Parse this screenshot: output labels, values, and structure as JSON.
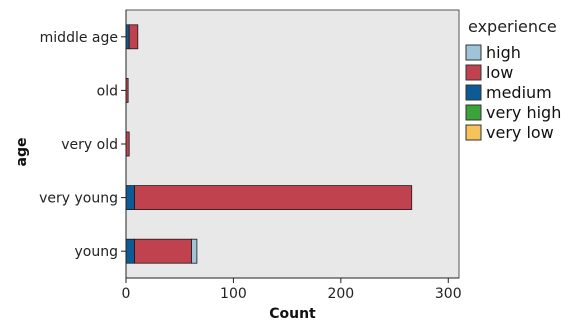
{
  "chart_data": {
    "type": "bar",
    "orientation": "horizontal",
    "stacked": true,
    "title": "",
    "xlabel": "Count",
    "ylabel": "age",
    "xlim": [
      0,
      310
    ],
    "x_ticks": [
      0,
      100,
      200,
      300
    ],
    "grid": false,
    "legend_position": "right",
    "legend_title": "experience",
    "categories": [
      "middle age",
      "old",
      "very old",
      "very young",
      "young"
    ],
    "series": [
      {
        "name": "high",
        "color": "#9fc4d8",
        "values": [
          0,
          0,
          0,
          0,
          5
        ]
      },
      {
        "name": "low",
        "color": "#c0424e",
        "values": [
          8,
          2,
          3,
          258,
          53
        ]
      },
      {
        "name": "medium",
        "color": "#0d5a94",
        "values": [
          3,
          0,
          0,
          8,
          8
        ]
      },
      {
        "name": "very high",
        "color": "#3aa33a",
        "values": [
          0,
          0,
          0,
          0,
          0
        ]
      },
      {
        "name": "very low",
        "color": "#f5c35a",
        "values": [
          0,
          0,
          0,
          0,
          0
        ]
      }
    ],
    "stack_order": [
      "medium",
      "low",
      "high",
      "very high",
      "very low"
    ],
    "plot_background": "#e8e8e8"
  }
}
